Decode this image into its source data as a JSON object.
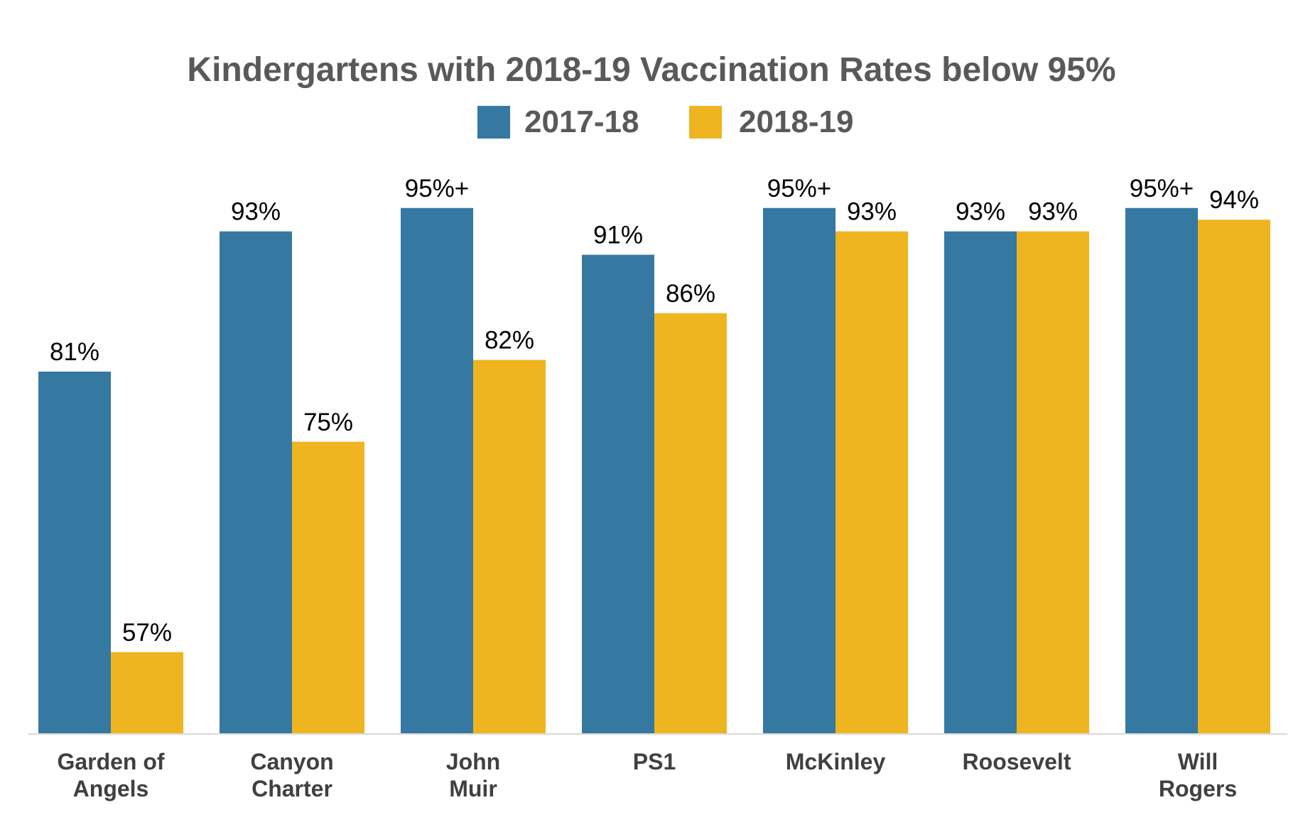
{
  "chart_data": {
    "type": "bar",
    "title": "Kindergartens with 2018-19 Vaccination Rates below 95%",
    "xlabel": "",
    "ylabel": "",
    "legend_position": "top-center",
    "grid": false,
    "ylim": [
      50,
      100
    ],
    "categories": [
      [
        "Garden of",
        "Angels"
      ],
      [
        "Canyon",
        "Charter"
      ],
      [
        "John",
        "Muir"
      ],
      [
        "PS1"
      ],
      [
        "McKinley"
      ],
      [
        "Roosevelt"
      ],
      [
        "Will",
        "Rogers"
      ]
    ],
    "series": [
      {
        "name": "2017-18",
        "color": "#3578A2",
        "values": [
          81,
          93,
          95,
          91,
          95,
          93,
          95
        ],
        "labels": [
          "81%",
          "93%",
          "95%+",
          "91%",
          "95%+",
          "93%",
          "95%+"
        ]
      },
      {
        "name": "2018-19",
        "color": "#EEB521",
        "values": [
          57,
          75,
          82,
          86,
          93,
          93,
          94
        ],
        "labels": [
          "57%",
          "75%",
          "82%",
          "86%",
          "93%",
          "93%",
          "94%"
        ]
      }
    ]
  }
}
